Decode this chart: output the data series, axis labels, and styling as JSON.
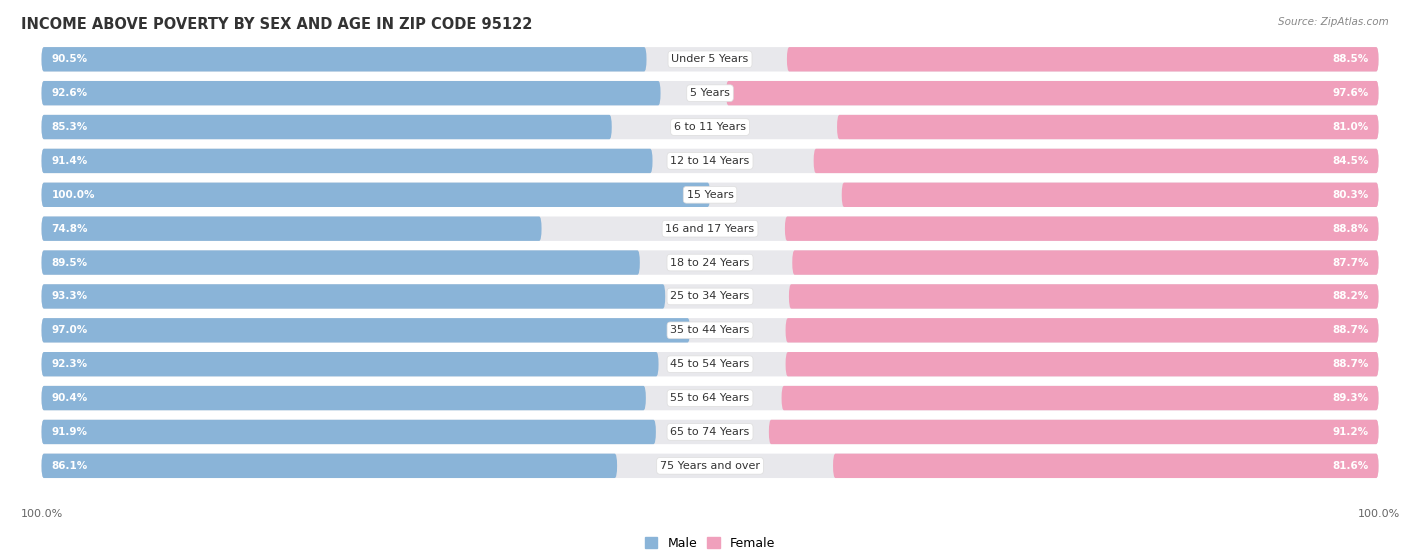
{
  "title": "INCOME ABOVE POVERTY BY SEX AND AGE IN ZIP CODE 95122",
  "source": "Source: ZipAtlas.com",
  "categories": [
    "Under 5 Years",
    "5 Years",
    "6 to 11 Years",
    "12 to 14 Years",
    "15 Years",
    "16 and 17 Years",
    "18 to 24 Years",
    "25 to 34 Years",
    "35 to 44 Years",
    "45 to 54 Years",
    "55 to 64 Years",
    "65 to 74 Years",
    "75 Years and over"
  ],
  "male_values": [
    90.5,
    92.6,
    85.3,
    91.4,
    100.0,
    74.8,
    89.5,
    93.3,
    97.0,
    92.3,
    90.4,
    91.9,
    86.1
  ],
  "female_values": [
    88.5,
    97.6,
    81.0,
    84.5,
    80.3,
    88.8,
    87.7,
    88.2,
    88.7,
    88.7,
    89.3,
    91.2,
    81.6
  ],
  "male_color": "#8ab4d8",
  "female_color": "#f0a0bc",
  "male_label": "Male",
  "female_label": "Female",
  "background_color": "#ffffff",
  "track_color": "#e8e8ec",
  "title_fontsize": 10.5,
  "label_fontsize": 8,
  "value_fontsize": 7.5,
  "axis_label_fontsize": 8,
  "legend_fontsize": 9,
  "max_value": 100.0
}
